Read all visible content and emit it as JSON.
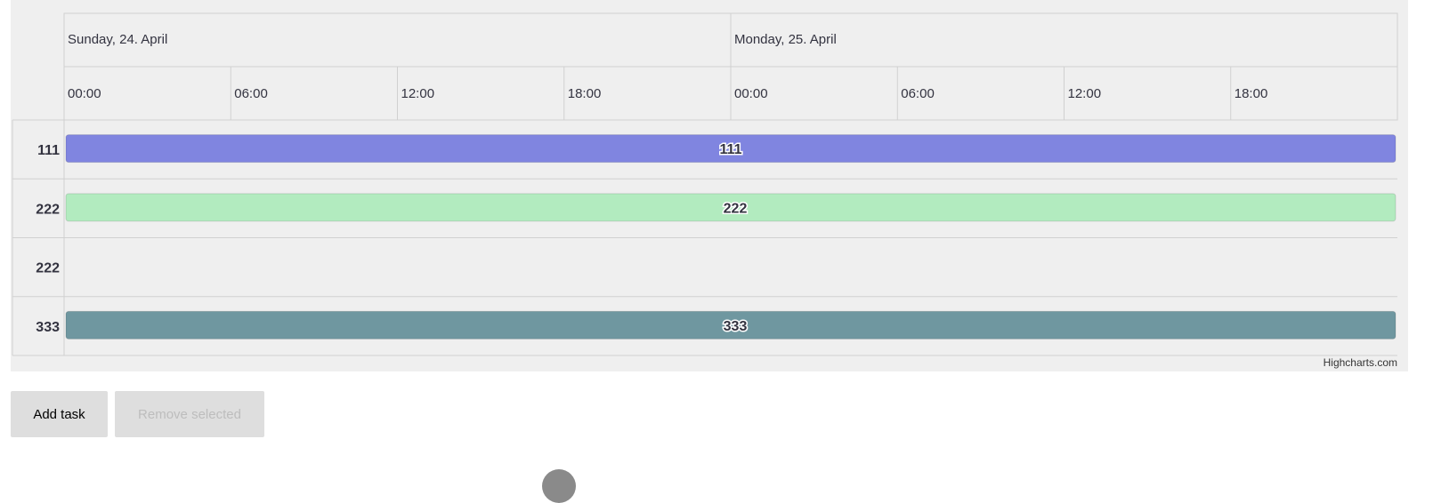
{
  "chart_data": {
    "type": "gantt",
    "header_dates": [
      "Sunday, 24. April",
      "Monday, 25. April"
    ],
    "tick_labels": [
      "00:00",
      "06:00",
      "12:00",
      "18:00",
      "00:00",
      "06:00",
      "12:00",
      "18:00"
    ],
    "x_range": [
      "24 April 00:00",
      "26 April 00:00"
    ],
    "categories": [
      "111",
      "222",
      "222",
      "333"
    ],
    "tasks": [
      {
        "name": "111",
        "row": 0,
        "start": "24 April 00:00",
        "end": "26 April 00:00",
        "color": "#8085e0"
      },
      {
        "name": "222",
        "row": 1,
        "start": "24 April 00:00",
        "end": "26 April 00:00",
        "color": "#b2ebbf"
      },
      {
        "name": "333",
        "row": 3,
        "start": "24 April 00:00",
        "end": "26 April 00:00",
        "color": "#6f97a0"
      }
    ],
    "credits": "Highcharts.com",
    "grid": true
  },
  "buttons": {
    "add_task": "Add task",
    "remove_selected": "Remove selected"
  }
}
